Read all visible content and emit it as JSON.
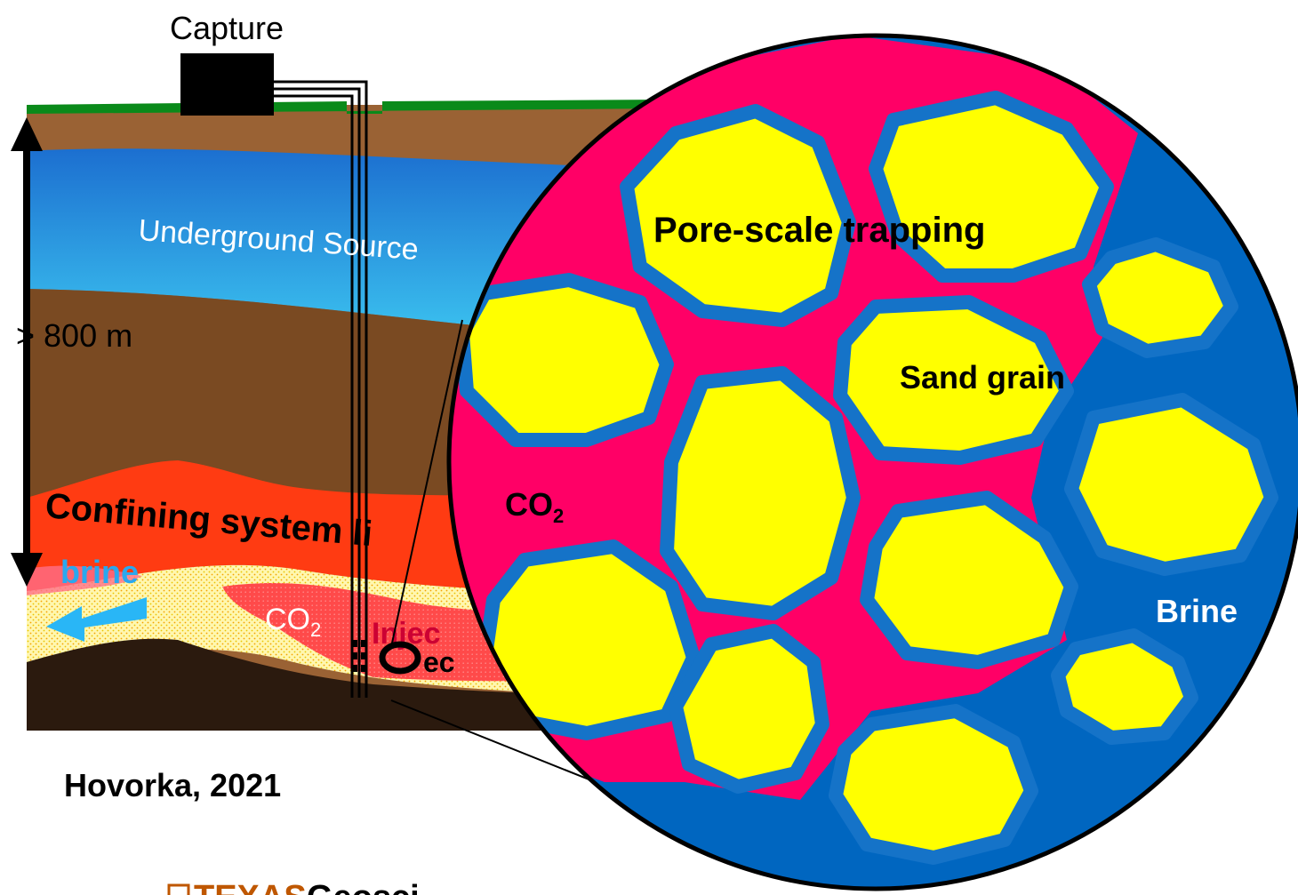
{
  "labels": {
    "capture": "Capture",
    "usdw": "Underground Source",
    "depth": "> 800 m",
    "confining": "Confining system li",
    "brine_left": "brine",
    "co2_plume": "CO",
    "co2_plume_sub": "2",
    "injection_partial": "Injec",
    "injection_partial2": "ec",
    "pore_trapping": "Pore-scale trapping",
    "sand_grain": "Sand grain",
    "co2_pore": "CO",
    "co2_pore_sub": "2",
    "brine_pore": "Brine",
    "credit": "Hovorka, 2021",
    "logo_text": "TEXAS",
    "logo_partial": "Geosci"
  },
  "colors": {
    "surface_grass": "#0a8a1a",
    "soil_brown": "#a0652e",
    "aquifer_blue": "#1f8fe0",
    "confining_red": "#ff3b1f",
    "co2_magenta": "#ff0066",
    "grain_yellow": "#ffff00",
    "grain_outline": "#1573c8",
    "brine_blue": "#0066c0",
    "brine_arrow": "#29b6f6",
    "logo_orange": "#bf5700"
  }
}
